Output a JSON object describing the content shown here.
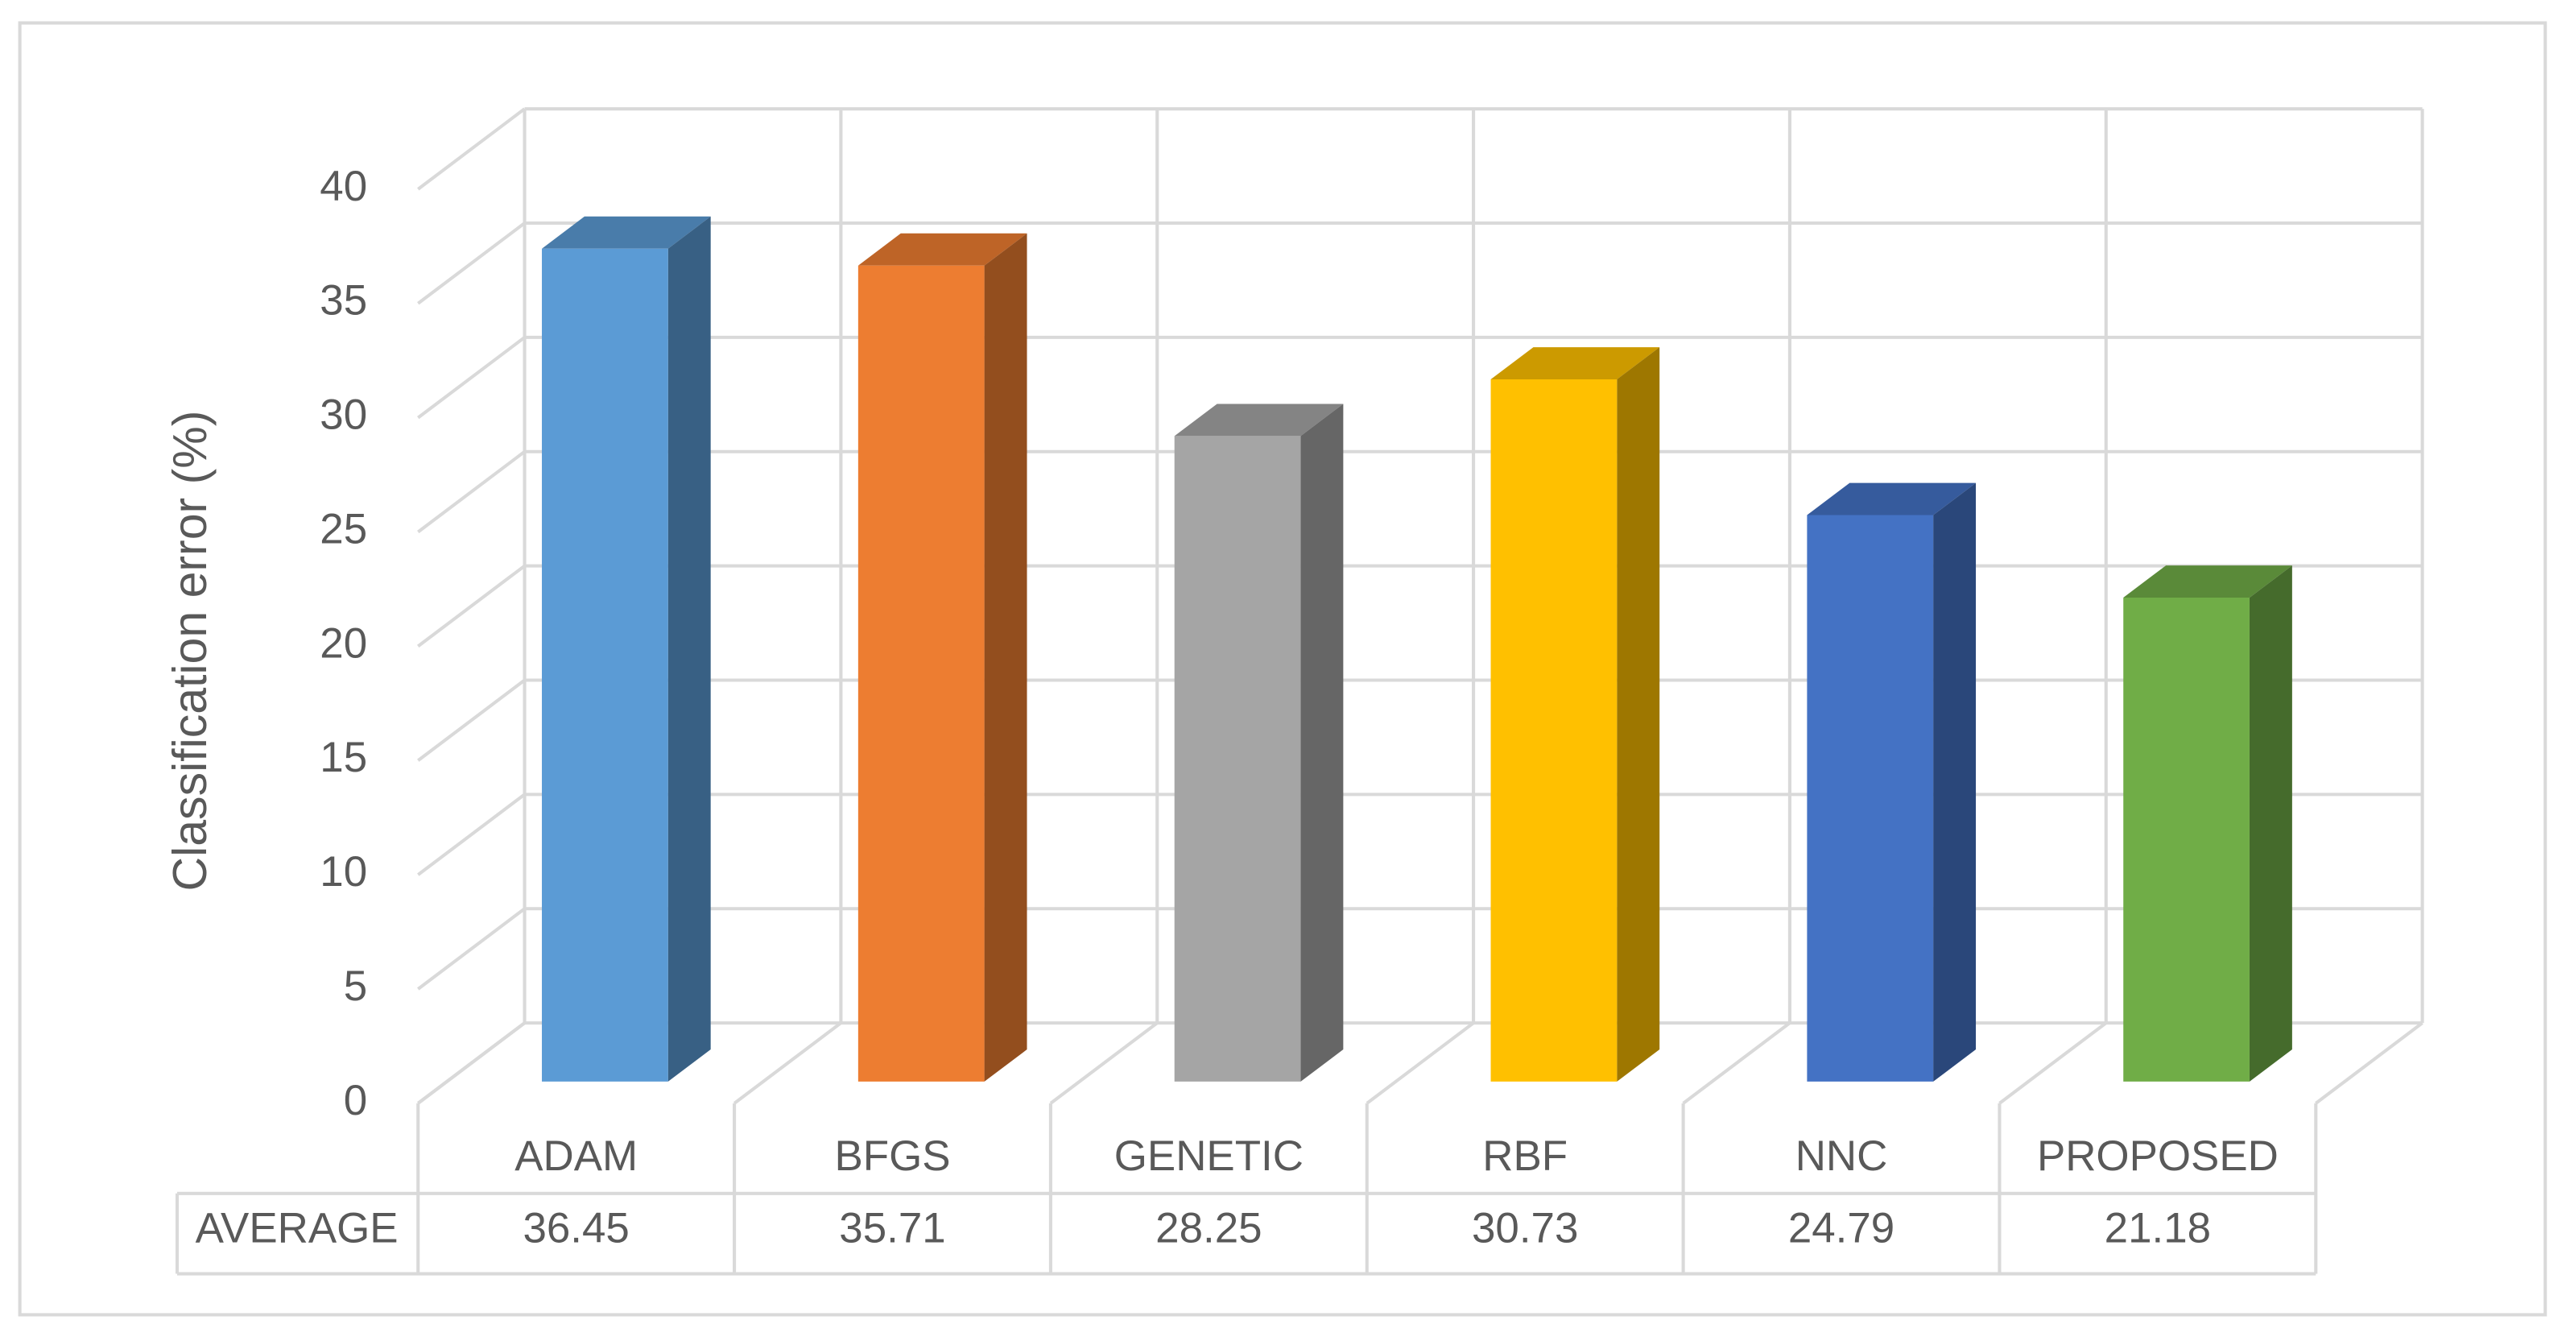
{
  "chart_data": {
    "type": "bar3d",
    "y_label": "Classification error (%)",
    "categories": [
      "ADAM",
      "BFGS",
      "GENETIC",
      "RBF",
      "NNC",
      "PROPOSED"
    ],
    "series": [
      {
        "name": "AVERAGE",
        "colors": [
          "#5b9bd5",
          "#ed7d31",
          "#a5a5a5",
          "#ffc000",
          "#4472c4",
          "#70ad47"
        ],
        "values": [
          36.45,
          35.71,
          28.25,
          30.73,
          24.79,
          21.18
        ]
      }
    ],
    "ylim": [
      0,
      40
    ],
    "yticks": [
      0,
      5,
      10,
      15,
      20,
      25,
      30,
      35,
      40
    ],
    "grid": true
  }
}
